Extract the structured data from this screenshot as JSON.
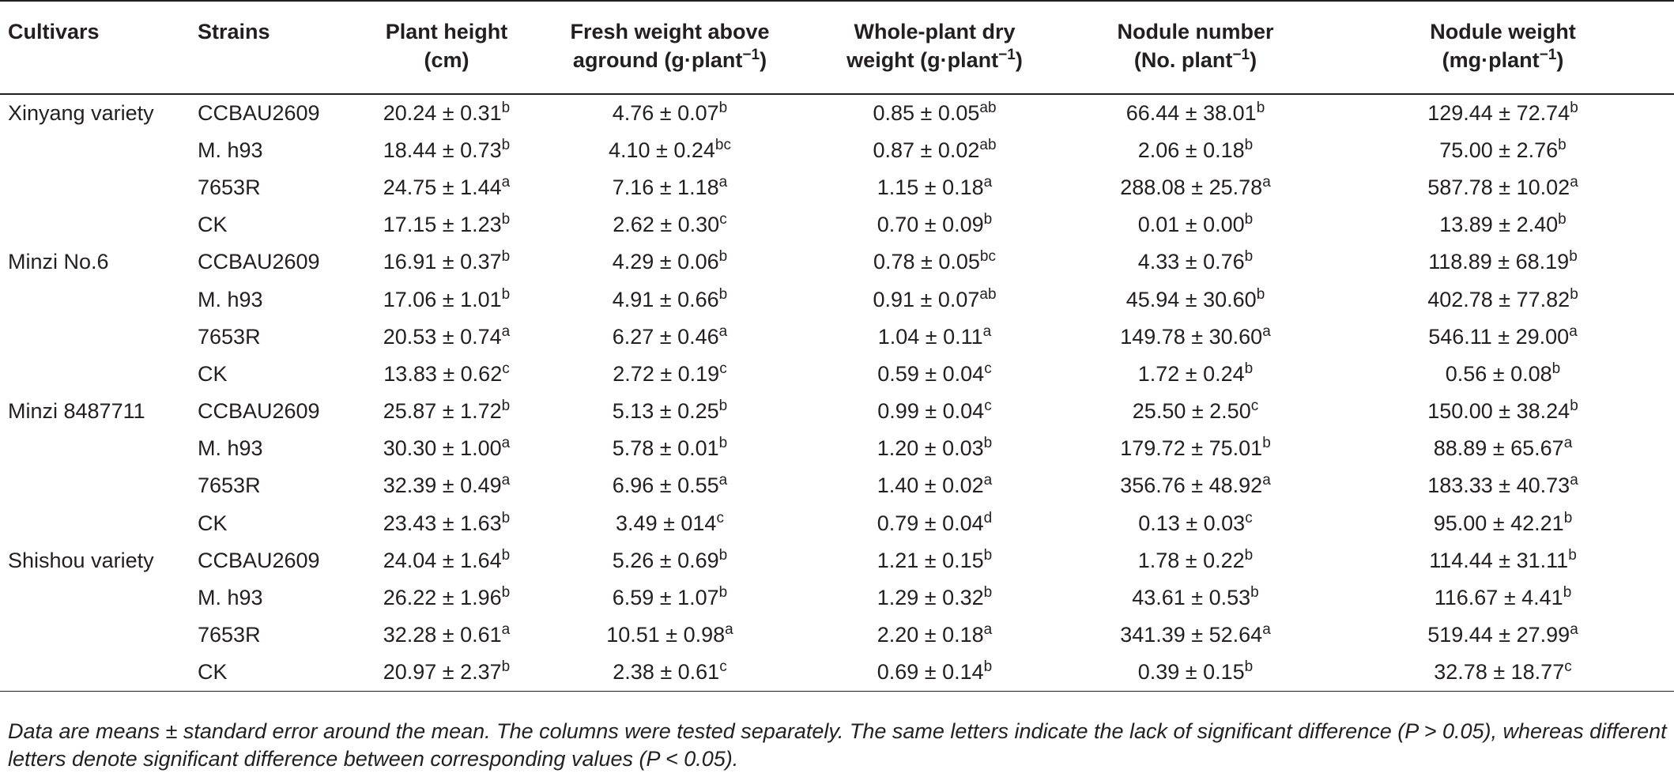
{
  "header": {
    "cultivars": "Cultivars",
    "strains": "Strains",
    "plant_height": [
      "Plant height",
      "(cm)"
    ],
    "fresh_weight": [
      "Fresh weight above",
      "aground (g·plant",
      "−1",
      ")"
    ],
    "dry_weight": [
      "Whole-plant dry",
      "weight (g·plant",
      "−1",
      ")"
    ],
    "nodule_number": [
      "Nodule number",
      "(No. plant",
      "−1",
      ")"
    ],
    "nodule_weight": [
      "Nodule weight",
      "(mg·plant",
      "−1",
      ")"
    ]
  },
  "rows": [
    {
      "cultivar": "Xinyang variety",
      "strain": "CCBAU2609",
      "cells": [
        [
          "20.24 ± 0.31",
          "b"
        ],
        [
          "4.76 ± 0.07",
          "b"
        ],
        [
          "0.85 ± 0.05",
          "ab"
        ],
        [
          "66.44 ± 38.01",
          "b"
        ],
        [
          "129.44 ± 72.74",
          "b"
        ]
      ]
    },
    {
      "cultivar": "",
      "strain": "M. h93",
      "cells": [
        [
          "18.44 ± 0.73",
          "b"
        ],
        [
          "4.10 ± 0.24",
          "bc"
        ],
        [
          "0.87 ± 0.02",
          "ab"
        ],
        [
          "2.06 ± 0.18",
          "b"
        ],
        [
          "75.00 ± 2.76",
          "b"
        ]
      ]
    },
    {
      "cultivar": "",
      "strain": "7653R",
      "cells": [
        [
          "24.75 ± 1.44",
          "a"
        ],
        [
          "7.16 ± 1.18",
          "a"
        ],
        [
          "1.15 ± 0.18",
          "a"
        ],
        [
          "288.08 ± 25.78",
          "a"
        ],
        [
          "587.78 ± 10.02",
          "a"
        ]
      ]
    },
    {
      "cultivar": "",
      "strain": "CK",
      "cells": [
        [
          "17.15 ± 1.23",
          "b"
        ],
        [
          "2.62 ± 0.30",
          "c"
        ],
        [
          "0.70 ± 0.09",
          "b"
        ],
        [
          "0.01 ± 0.00",
          "b"
        ],
        [
          "13.89 ± 2.40",
          "b"
        ]
      ]
    },
    {
      "cultivar": "Minzi No.6",
      "strain": "CCBAU2609",
      "cells": [
        [
          "16.91 ± 0.37",
          "b"
        ],
        [
          "4.29 ± 0.06",
          "b"
        ],
        [
          "0.78 ± 0.05",
          "bc"
        ],
        [
          "4.33 ± 0.76",
          "b"
        ],
        [
          "118.89 ± 68.19",
          "b"
        ]
      ]
    },
    {
      "cultivar": "",
      "strain": "M. h93",
      "cells": [
        [
          "17.06 ± 1.01",
          "b"
        ],
        [
          "4.91 ± 0.66",
          "b"
        ],
        [
          "0.91 ± 0.07",
          "ab"
        ],
        [
          "45.94 ± 30.60",
          "b"
        ],
        [
          "402.78 ± 77.82",
          "b"
        ]
      ]
    },
    {
      "cultivar": "",
      "strain": "7653R",
      "cells": [
        [
          "20.53 ± 0.74",
          "a"
        ],
        [
          "6.27 ± 0.46",
          "a"
        ],
        [
          "1.04 ± 0.11",
          "a"
        ],
        [
          "149.78 ± 30.60",
          "a"
        ],
        [
          "546.11 ± 29.00",
          "a"
        ]
      ]
    },
    {
      "cultivar": "",
      "strain": "CK",
      "cells": [
        [
          "13.83 ± 0.62",
          "c"
        ],
        [
          "2.72 ± 0.19",
          "c"
        ],
        [
          "0.59 ± 0.04",
          "c"
        ],
        [
          "1.72 ± 0.24",
          "b"
        ],
        [
          "0.56 ± 0.08",
          "b"
        ]
      ]
    },
    {
      "cultivar": "Minzi 8487711",
      "strain": "CCBAU2609",
      "cells": [
        [
          "25.87 ± 1.72",
          "b"
        ],
        [
          "5.13 ± 0.25",
          "b"
        ],
        [
          "0.99 ± 0.04",
          "c"
        ],
        [
          "25.50 ± 2.50",
          "c"
        ],
        [
          "150.00 ± 38.24",
          "b"
        ]
      ]
    },
    {
      "cultivar": "",
      "strain": "M. h93",
      "cells": [
        [
          "30.30 ± 1.00",
          "a"
        ],
        [
          "5.78 ± 0.01",
          "b"
        ],
        [
          "1.20 ± 0.03",
          "b"
        ],
        [
          "179.72 ± 75.01",
          "b"
        ],
        [
          "88.89 ± 65.67",
          "a"
        ]
      ]
    },
    {
      "cultivar": "",
      "strain": "7653R",
      "cells": [
        [
          "32.39 ± 0.49",
          "a"
        ],
        [
          "6.96 ± 0.55",
          "a"
        ],
        [
          "1.40 ± 0.02",
          "a"
        ],
        [
          "356.76 ± 48.92",
          "a"
        ],
        [
          "183.33 ± 40.73",
          "a"
        ]
      ]
    },
    {
      "cultivar": "",
      "strain": "CK",
      "cells": [
        [
          "23.43 ± 1.63",
          "b"
        ],
        [
          "3.49 ± 014",
          "c"
        ],
        [
          "0.79 ± 0.04",
          "d"
        ],
        [
          "0.13 ± 0.03",
          "c"
        ],
        [
          "95.00 ± 42.21",
          "b"
        ]
      ]
    },
    {
      "cultivar": "Shishou variety",
      "strain": "CCBAU2609",
      "cells": [
        [
          "24.04 ± 1.64",
          "b"
        ],
        [
          "5.26 ± 0.69",
          "b"
        ],
        [
          "1.21 ± 0.15",
          "b"
        ],
        [
          "1.78 ± 0.22",
          "b"
        ],
        [
          "114.44 ± 31.11",
          "b"
        ]
      ]
    },
    {
      "cultivar": "",
      "strain": "M. h93",
      "cells": [
        [
          "26.22 ± 1.96",
          "b"
        ],
        [
          "6.59 ± 1.07",
          "b"
        ],
        [
          "1.29 ± 0.32",
          "b"
        ],
        [
          "43.61 ± 0.53",
          "b"
        ],
        [
          "116.67 ± 4.41",
          "b"
        ]
      ]
    },
    {
      "cultivar": "",
      "strain": "7653R",
      "cells": [
        [
          "32.28 ± 0.61",
          "a"
        ],
        [
          "10.51 ± 0.98",
          "a"
        ],
        [
          "2.20 ± 0.18",
          "a"
        ],
        [
          "341.39 ± 52.64",
          "a"
        ],
        [
          "519.44 ± 27.99",
          "a"
        ]
      ]
    },
    {
      "cultivar": "",
      "strain": "CK",
      "cells": [
        [
          "20.97 ± 2.37",
          "b"
        ],
        [
          "2.38 ± 0.61",
          "c"
        ],
        [
          "0.69 ± 0.14",
          "b"
        ],
        [
          "0.39 ± 0.15",
          "b"
        ],
        [
          "32.78 ± 18.77",
          "c"
        ]
      ]
    }
  ],
  "footnote": "Data are means ± standard error around the mean. The columns were tested separately. The same letters indicate the lack of significant difference (P > 0.05), whereas different letters denote significant difference between corresponding values (P < 0.05)."
}
